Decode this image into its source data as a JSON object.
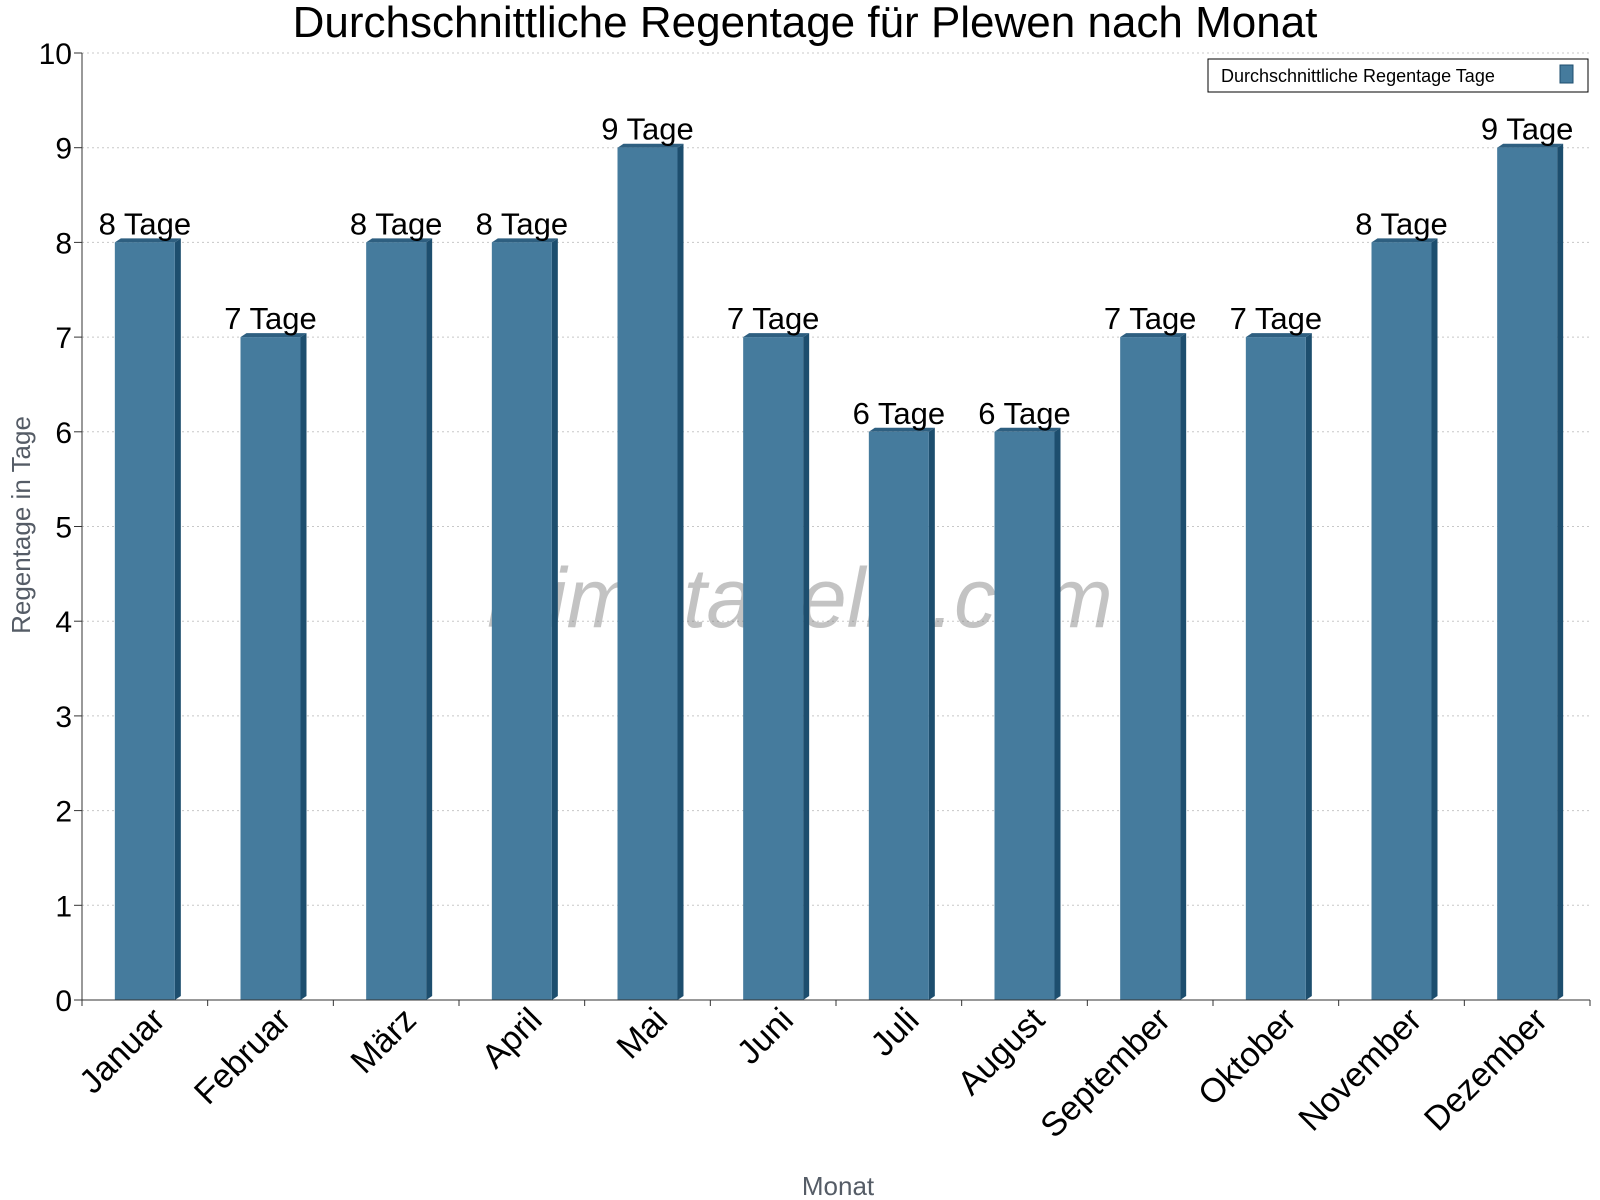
{
  "chart_data": {
    "type": "bar",
    "title": "Durchschnittliche Regentage für Plewen nach Monat",
    "xlabel": "Monat",
    "ylabel": "Regentage in Tage",
    "categories": [
      "Januar",
      "Februar",
      "März",
      "April",
      "Mai",
      "Juni",
      "Juli",
      "August",
      "September",
      "Oktober",
      "November",
      "Dezember"
    ],
    "series": [
      {
        "name": "Durchschnittliche Regentage Tage",
        "values": [
          8,
          7,
          8,
          8,
          9,
          7,
          6,
          6,
          7,
          7,
          8,
          9
        ],
        "labels": [
          "8 Tage",
          "7 Tage",
          "8 Tage",
          "8 Tage",
          "9 Tage",
          "7 Tage",
          "6 Tage",
          "6 Tage",
          "7 Tage",
          "7 Tage",
          "8 Tage",
          "9 Tage"
        ]
      }
    ],
    "ylim": [
      0,
      10
    ],
    "yticks": [
      "0",
      "1",
      "2",
      "3",
      "4",
      "5",
      "6",
      "7",
      "8",
      "9",
      "10"
    ],
    "grid": true,
    "legend_position": "top-right",
    "colors": {
      "bar": "#457b9d",
      "bar_side": "#1d4e6e",
      "bar_top": "#2e5f80"
    }
  },
  "watermark": "klimatabelle.com"
}
